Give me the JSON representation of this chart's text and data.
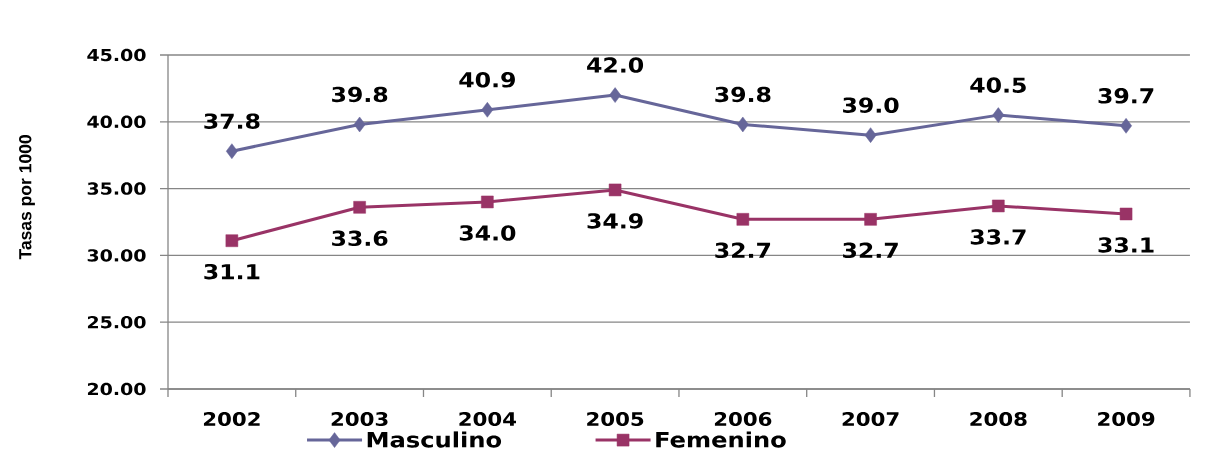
{
  "chart_data": {
    "type": "line",
    "ylabel": "Tasas por 1000",
    "categories": [
      "2002",
      "2003",
      "2004",
      "2005",
      "2006",
      "2007",
      "2008",
      "2009"
    ],
    "series": [
      {
        "name": "Masculino",
        "color": "#666699",
        "marker": "diamond",
        "values": [
          37.8,
          39.8,
          40.9,
          42.0,
          39.8,
          39.0,
          40.5,
          39.7
        ],
        "value_labels": [
          "37.8",
          "39.8",
          "40.9",
          "42.0",
          "39.8",
          "39.0",
          "40.5",
          "39.7"
        ]
      },
      {
        "name": "Femenino",
        "color": "#993366",
        "marker": "square",
        "values": [
          31.1,
          33.6,
          34.0,
          34.9,
          32.7,
          32.7,
          33.7,
          33.1
        ],
        "value_labels": [
          "31.1",
          "33.6",
          "34.0",
          "34.9",
          "32.7",
          "32.7",
          "33.7",
          "33.1"
        ]
      }
    ],
    "ylim": [
      20,
      45
    ],
    "yticks": [
      {
        "value": 20,
        "label": "20.00"
      },
      {
        "value": 25,
        "label": "25.00"
      },
      {
        "value": 30,
        "label": "30.00"
      },
      {
        "value": 35,
        "label": "35.00"
      },
      {
        "value": 40,
        "label": "40.00"
      },
      {
        "value": 45,
        "label": "45.00"
      }
    ],
    "grid": "y",
    "legend": "bottom",
    "line_style": "solid"
  }
}
